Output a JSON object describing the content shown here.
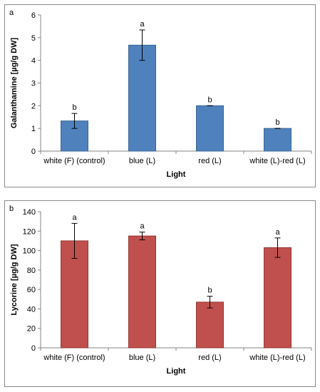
{
  "chart_data": [
    {
      "panel_label": "a",
      "type": "bar",
      "categories": [
        "white (F) (control)",
        "blue (L)",
        "red (L)",
        "white (L)-red (L)"
      ],
      "values": [
        1.33,
        4.67,
        2.0,
        1.0
      ],
      "errors": [
        0.33,
        0.67,
        0.0,
        0.0
      ],
      "significance": [
        "b",
        "a",
        "b",
        "b"
      ],
      "xlabel": "Light",
      "ylabel": "Galanthamine [µg/g DW]",
      "ylim": [
        0,
        6
      ],
      "yticks": [
        "0",
        "1",
        "2",
        "3",
        "4",
        "5",
        "6"
      ],
      "grid": "none",
      "bar_color": "#4f81bd",
      "bar_edge": "#3a6595"
    },
    {
      "panel_label": "b",
      "type": "bar",
      "categories": [
        "white (F) (control)",
        "blue (L)",
        "red (L)",
        "white (L)-red (L)"
      ],
      "values": [
        110,
        115,
        47,
        103
      ],
      "errors": [
        18,
        4,
        6,
        10
      ],
      "significance": [
        "a",
        "a",
        "b",
        "a"
      ],
      "xlabel": "Light",
      "ylabel": "Lycorine [µg/g DW]",
      "ylim": [
        0,
        140
      ],
      "yticks": [
        "0",
        "20",
        "40",
        "60",
        "80",
        "100",
        "120",
        "140"
      ],
      "grid": "none",
      "bar_color": "#c0504d",
      "bar_edge": "#953735"
    }
  ]
}
